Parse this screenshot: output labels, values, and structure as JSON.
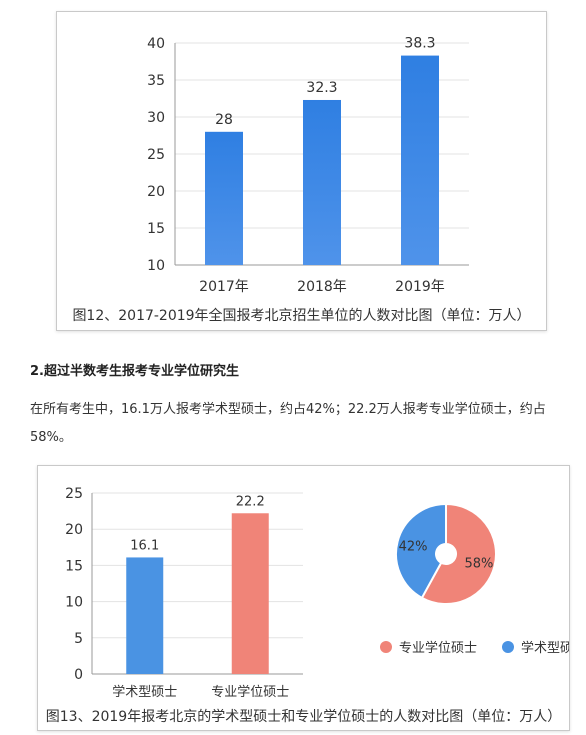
{
  "chart_data": [
    {
      "type": "bar",
      "categories": [
        "2017年",
        "2018年",
        "2019年"
      ],
      "values": [
        28,
        32.3,
        38.3
      ],
      "data_labels": [
        "28",
        "32.3",
        "38.3"
      ],
      "ylim": [
        10,
        40
      ],
      "yticks": [
        10,
        15,
        20,
        25,
        30,
        35,
        40
      ],
      "grid": true,
      "bar_color": "#3a86e6",
      "caption": "图12、2017-2019年全国报考北京招生单位的人数对比图（单位：万人）"
    },
    {
      "type": "bar",
      "categories": [
        "学术型硕士",
        "专业学位硕士"
      ],
      "values": [
        16.1,
        22.2
      ],
      "data_labels": [
        "16.1",
        "22.2"
      ],
      "colors": [
        "#4a93e3",
        "#f08478"
      ],
      "ylim": [
        0,
        25
      ],
      "yticks": [
        0,
        5,
        10,
        15,
        20,
        25
      ],
      "grid": true,
      "caption": "图13、2019年报考北京的学术型硕士和专业学位硕士的人数对比图（单位：万人）"
    },
    {
      "type": "pie",
      "labels": [
        "专业学位硕士",
        "学术型硕士"
      ],
      "values": [
        58,
        42
      ],
      "data_labels": [
        "58%",
        "42%"
      ],
      "colors": [
        "#f08478",
        "#4a93e3"
      ],
      "legend_position": "bottom"
    }
  ],
  "section": {
    "title": "2.超过半数考生报考专业学位研究生",
    "paragraph": "在所有考生中，16.1万人报考学术型硕士，约占42%；22.2万人报考专业学位硕士，约占58%。"
  }
}
